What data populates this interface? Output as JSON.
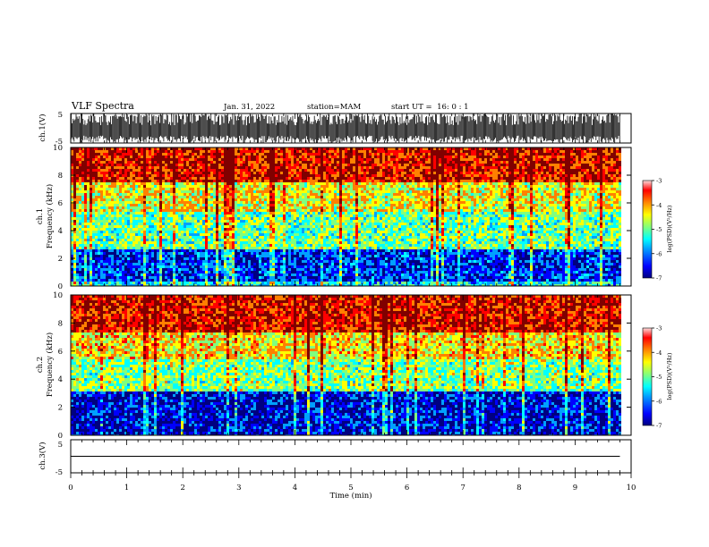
{
  "header": {
    "title": "VLF Spectra",
    "date": "Jan. 31, 2022",
    "station": "station=MAM",
    "start": "start UT =  16: 0 : 1"
  },
  "chart_data": [
    {
      "type": "line",
      "panel": "ch1-waveform",
      "ylabel": "ch.1(V)",
      "ylim": [
        -5,
        5
      ],
      "yticks": [
        "5",
        "-5"
      ],
      "xlim": [
        0,
        10
      ],
      "note": "dense burst waveform spanning 0 to 9.8 min"
    },
    {
      "type": "heatmap",
      "panel": "ch1-spectrogram",
      "ylabel_line1": "ch.1",
      "ylabel_line2": "Frequency (kHz)",
      "ylim": [
        0,
        10
      ],
      "yticks": [
        "0",
        "2",
        "4",
        "6",
        "8",
        "10"
      ],
      "xlim": [
        0,
        10
      ],
      "colorbar": {
        "label": "log(PSD)(V²/Hz)",
        "range": [
          -7,
          -3
        ],
        "ticks": [
          "-3",
          "-4",
          "-5",
          "-6",
          "-7"
        ]
      },
      "profile": [
        {
          "freq_khz": [
            0,
            0.5
          ],
          "log_psd": -5.5
        },
        {
          "freq_khz": [
            0.5,
            2.8
          ],
          "log_psd": -6.3
        },
        {
          "freq_khz": [
            2.8,
            5.5
          ],
          "log_psd": -5.1
        },
        {
          "freq_khz": [
            5.5,
            7.5
          ],
          "log_psd": -4.6
        },
        {
          "freq_khz": [
            7.5,
            10
          ],
          "log_psd": -3.6
        }
      ]
    },
    {
      "type": "heatmap",
      "panel": "ch2-spectrogram",
      "ylabel_line1": "ch.2",
      "ylabel_line2": "Frequency (kHz)",
      "ylim": [
        0,
        10
      ],
      "yticks": [
        "0",
        "2",
        "4",
        "6",
        "8",
        "10"
      ],
      "xlim": [
        0,
        10
      ],
      "colorbar": {
        "label": "log(PSD)(V²/Hz)",
        "range": [
          -7,
          -3
        ],
        "ticks": [
          "-3",
          "-4",
          "-5",
          "-6",
          "-7"
        ]
      },
      "profile": [
        {
          "freq_khz": [
            0,
            3.2
          ],
          "log_psd": -6.5
        },
        {
          "freq_khz": [
            3.2,
            5.5
          ],
          "log_psd": -5.0
        },
        {
          "freq_khz": [
            5.5,
            7.5
          ],
          "log_psd": -4.5
        },
        {
          "freq_khz": [
            7.5,
            10
          ],
          "log_psd": -3.6
        }
      ]
    },
    {
      "type": "line",
      "panel": "ch3-waveform",
      "ylabel": "ch.3(V)",
      "ylim": [
        -5,
        5
      ],
      "yticks": [
        "5",
        "-5"
      ],
      "xlim": [
        0,
        10
      ],
      "xticks": [
        "0",
        "1",
        "2",
        "3",
        "4",
        "5",
        "6",
        "7",
        "8",
        "9",
        "10"
      ],
      "xlabel": "Time (min)",
      "x": [
        0,
        9.8
      ],
      "values": [
        0,
        0
      ]
    }
  ],
  "colors": {
    "colormap": [
      "#000080",
      "#0000ff",
      "#00a0ff",
      "#00ffff",
      "#7fff7f",
      "#ffff00",
      "#ff8000",
      "#ff0000",
      "#800000"
    ],
    "axes": "#000000",
    "background": "#ffffff"
  }
}
